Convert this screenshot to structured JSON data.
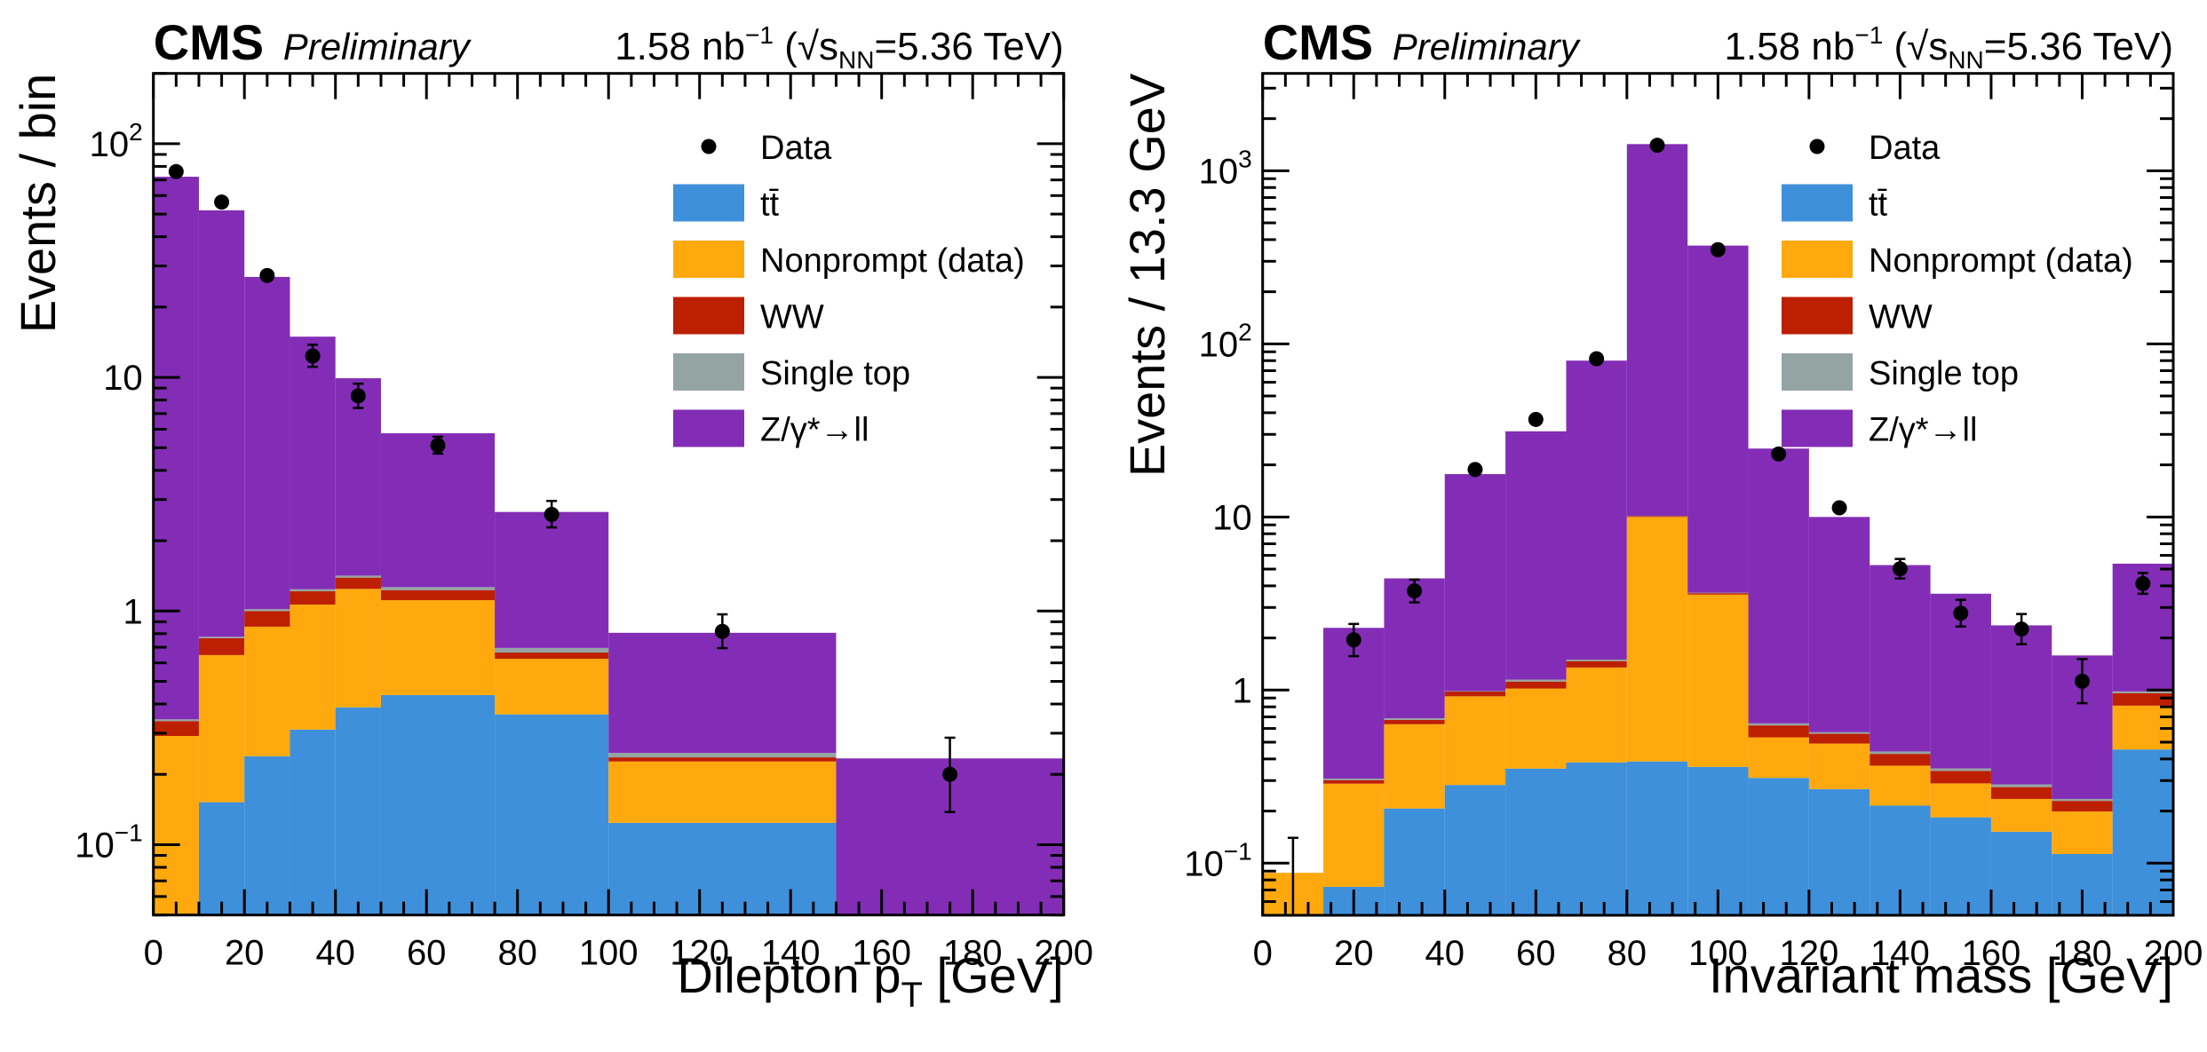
{
  "colors": {
    "ttbar": "#3f90da",
    "nonprompt": "#ffa90e",
    "ww": "#bd1f01",
    "singletop": "#94a4a2",
    "dy": "#832db6",
    "data": "#000000"
  },
  "chart_data": [
    {
      "type": "bar",
      "subtype": "stacked-histogram",
      "title": "CMS Preliminary",
      "experiment": "CMS",
      "status": "Preliminary",
      "lumi_text": "1.58 nb⁻¹ (√sNN=5.36 TeV)",
      "lumi": {
        "value": "1.58",
        "unit": "nb",
        "unit_exp": "−1",
        "sqrt_s_label": "s",
        "sqrt_s_sub": "NN",
        "energy": "=5.36 TeV)"
      },
      "xlabel": "Dilepton p_T [GeV]",
      "xlabel_parts": {
        "main": "Dilepton p",
        "sub": "T",
        "tail": " [GeV]"
      },
      "ylabel": "Events / bin",
      "yscale": "log",
      "xlim": [
        0,
        200
      ],
      "ylim": [
        0.05,
        200
      ],
      "x_ticks": [
        0,
        20,
        40,
        60,
        80,
        100,
        120,
        140,
        160,
        180,
        200
      ],
      "y_ticks": [
        {
          "value": 0.1,
          "base": "10",
          "exp": "−1"
        },
        {
          "value": 1,
          "base": "1",
          "exp": ""
        },
        {
          "value": 10,
          "base": "10",
          "exp": ""
        },
        {
          "value": 100,
          "base": "10",
          "exp": "2"
        }
      ],
      "bin_edges": [
        0,
        10,
        20,
        30,
        40,
        50,
        75,
        100,
        150,
        200
      ],
      "series": [
        {
          "key": "ttbar",
          "name": "tt̄",
          "values": [
            0,
            0.152,
            0.239,
            0.311,
            0.387,
            0.437,
            0.361,
            0.124,
            0
          ]
        },
        {
          "key": "nonprompt",
          "name": "Nonprompt (data)",
          "values": [
            0.292,
            0.496,
            0.618,
            0.755,
            0.857,
            0.676,
            0.264,
            0.103,
            0
          ]
        },
        {
          "key": "ww",
          "name": "WW",
          "values": [
            0.046,
            0.117,
            0.143,
            0.149,
            0.146,
            0.116,
            0.04,
            0.0095,
            0
          ]
        },
        {
          "key": "singletop",
          "name": "Single top",
          "values": [
            0.006,
            0.011,
            0.02,
            0.025,
            0.028,
            0.037,
            0.03,
            0.0105,
            0
          ]
        },
        {
          "key": "dy",
          "name": "Z/γ*→ll",
          "values": [
            71.9,
            51.1,
            25.9,
            13.7,
            8.5,
            4.5,
            1.96,
            0.56,
            0.234
          ]
        }
      ],
      "data_points": {
        "name": "Data",
        "x": [
          5,
          15,
          25,
          35,
          45,
          62.5,
          87.5,
          125,
          175
        ],
        "y": [
          76,
          56.3,
          27.3,
          12.35,
          8.34,
          5.12,
          2.59,
          0.818,
          0.2
        ],
        "err_low": [
          0,
          0,
          0,
          1.25,
          0.94,
          0.4,
          0.31,
          0.124,
          0.062
        ],
        "err_high": [
          0,
          0,
          0,
          1.45,
          1.06,
          0.45,
          0.37,
          0.15,
          0.087
        ]
      },
      "legend": {
        "placement": "top-right",
        "entries": [
          {
            "label": "Data",
            "type": "marker",
            "key": "data"
          },
          {
            "label": "tt̄",
            "type": "box",
            "key": "ttbar"
          },
          {
            "label": "Nonprompt (data)",
            "type": "box",
            "key": "nonprompt"
          },
          {
            "label": "WW",
            "type": "box",
            "key": "ww"
          },
          {
            "label": "Single top",
            "type": "box",
            "key": "singletop"
          },
          {
            "label": "Z/γ*→ll",
            "type": "box",
            "key": "dy"
          }
        ]
      }
    },
    {
      "type": "bar",
      "subtype": "stacked-histogram",
      "title": "CMS Preliminary",
      "experiment": "CMS",
      "status": "Preliminary",
      "lumi_text": "1.58 nb⁻¹ (√sNN=5.36 TeV)",
      "lumi": {
        "value": "1.58",
        "unit": "nb",
        "unit_exp": "−1",
        "sqrt_s_label": "s",
        "sqrt_s_sub": "NN",
        "energy": "=5.36 TeV)"
      },
      "xlabel": "Invariant mass [GeV]",
      "xlabel_parts": {
        "main": "Invariant mass [GeV]",
        "sub": "",
        "tail": ""
      },
      "ylabel": "Events / 13.3 GeV",
      "yscale": "log",
      "xlim": [
        0,
        200
      ],
      "ylim": [
        0.05,
        3650
      ],
      "x_ticks": [
        0,
        20,
        40,
        60,
        80,
        100,
        120,
        140,
        160,
        180,
        200
      ],
      "y_ticks": [
        {
          "value": 0.1,
          "base": "10",
          "exp": "−1"
        },
        {
          "value": 1,
          "base": "1",
          "exp": ""
        },
        {
          "value": 10,
          "base": "10",
          "exp": ""
        },
        {
          "value": 100,
          "base": "10",
          "exp": "2"
        },
        {
          "value": 1000,
          "base": "10",
          "exp": "3"
        }
      ],
      "bin_edges": [
        0,
        13.33,
        26.67,
        40,
        53.33,
        66.67,
        80,
        93.33,
        106.67,
        120,
        133.33,
        146.67,
        160,
        173.33,
        186.67,
        200
      ],
      "series": [
        {
          "key": "ttbar",
          "name": "tt̄",
          "values": [
            0,
            0.073,
            0.207,
            0.283,
            0.352,
            0.382,
            0.387,
            0.36,
            0.311,
            0.268,
            0.215,
            0.184,
            0.152,
            0.113,
            0.454
          ]
        },
        {
          "key": "nonprompt",
          "name": "Nonprompt (data)",
          "values": [
            0.088,
            0.215,
            0.428,
            0.637,
            0.668,
            0.968,
            9.61,
            3.2,
            0.222,
            0.223,
            0.151,
            0.105,
            0.083,
            0.086,
            0.359
          ]
        },
        {
          "key": "ww",
          "name": "WW",
          "values": [
            0,
            0.014,
            0.038,
            0.06,
            0.1,
            0.12,
            0.1,
            0.07,
            0.092,
            0.068,
            0.062,
            0.052,
            0.04,
            0.03,
            0.147
          ]
        },
        {
          "key": "singletop",
          "name": "Single top",
          "values": [
            0,
            0.006,
            0.014,
            0.007,
            0.03,
            0.03,
            0.05,
            0.02,
            0.017,
            0.012,
            0.014,
            0.012,
            0.01,
            0.006,
            0.022
          ]
        },
        {
          "key": "dy",
          "name": "Z/γ*→ll",
          "values": [
            0,
            1.98,
            3.73,
            16.7,
            30.1,
            78.5,
            1415,
            366,
            24.2,
            9.43,
            4.83,
            3.25,
            2.08,
            1.35,
            4.39
          ]
        }
      ],
      "data_points": {
        "name": "Data",
        "x": [
          6.67,
          20,
          33.33,
          46.67,
          60,
          73.33,
          86.67,
          100,
          113.33,
          126.67,
          140,
          153.33,
          166.67,
          180,
          193.33
        ],
        "y": [
          0,
          1.95,
          3.74,
          18.8,
          36.6,
          82,
          1403,
          350,
          23.1,
          11.3,
          5.02,
          2.78,
          2.25,
          1.125,
          4.12
        ],
        "err_low": [
          0,
          0.38,
          0.53,
          0,
          0,
          0,
          0,
          0,
          0,
          0,
          0.61,
          0.45,
          0.41,
          0.285,
          0.52
        ],
        "err_high": [
          0.14,
          0.46,
          0.61,
          0,
          0,
          0,
          0,
          0,
          0,
          0,
          0.7,
          0.54,
          0.5,
          0.385,
          0.63
        ]
      },
      "legend": {
        "placement": "top-right",
        "entries": [
          {
            "label": "Data",
            "type": "marker",
            "key": "data"
          },
          {
            "label": "tt̄",
            "type": "box",
            "key": "ttbar"
          },
          {
            "label": "Nonprompt (data)",
            "type": "box",
            "key": "nonprompt"
          },
          {
            "label": "WW",
            "type": "box",
            "key": "ww"
          },
          {
            "label": "Single top",
            "type": "box",
            "key": "singletop"
          },
          {
            "label": "Z/γ*→ll",
            "type": "box",
            "key": "dy"
          }
        ]
      }
    }
  ]
}
